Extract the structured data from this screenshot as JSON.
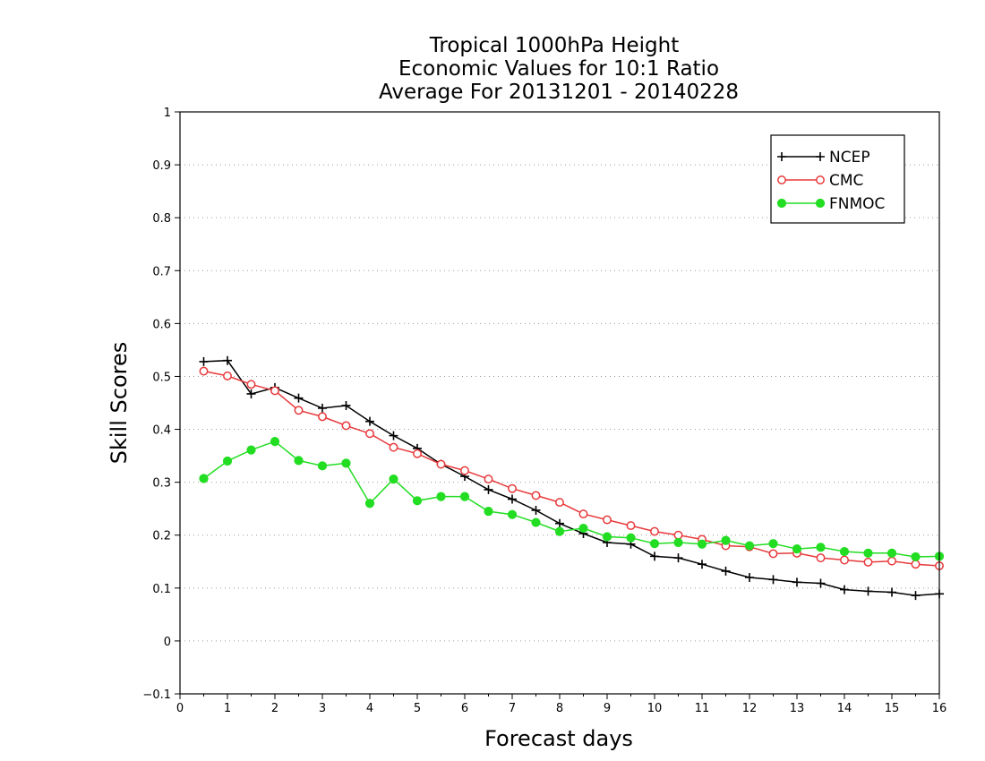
{
  "chart_data": {
    "type": "line",
    "title_lines": [
      "Tropical 1000hPa Height",
      "Economic Values for 10:1 Ratio",
      "Average For 20131201 - 20140228"
    ],
    "xlabel": "Forecast days",
    "ylabel": "Skill Scores",
    "xlim": [
      0,
      16
    ],
    "ylim": [
      -0.1,
      1
    ],
    "xticks": [
      0,
      1,
      2,
      3,
      4,
      5,
      6,
      7,
      8,
      9,
      10,
      11,
      12,
      13,
      14,
      15,
      16
    ],
    "xtick_labels": [
      "0",
      "1",
      "2",
      "3",
      "4",
      "5",
      "6",
      "7",
      "8",
      "9",
      "10",
      "11",
      "12",
      "13",
      "14",
      "15",
      "16"
    ],
    "yticks": [
      -0.1,
      0,
      0.1,
      0.2,
      0.3,
      0.4,
      0.5,
      0.6,
      0.7,
      0.8,
      0.9,
      1
    ],
    "ytick_labels": [
      "−0.1",
      "0",
      "0.1",
      "0.2",
      "0.3",
      "0.4",
      "0.5",
      "0.6",
      "0.7",
      "0.8",
      "0.9",
      "1"
    ],
    "grid": "horizontal dotted",
    "legend_position": "top-right",
    "x": [
      0.5,
      1,
      1.5,
      2,
      2.5,
      3,
      3.5,
      4,
      4.5,
      5,
      5.5,
      6,
      6.5,
      7,
      7.5,
      8,
      8.5,
      9,
      9.5,
      10,
      10.5,
      11,
      11.5,
      12,
      12.5,
      13,
      13.5,
      14,
      14.5,
      15,
      15.5,
      16
    ],
    "series": [
      {
        "name": "NCEP",
        "color": "#000000",
        "marker": "plus",
        "values": [
          0.528,
          0.53,
          0.467,
          0.479,
          0.459,
          0.44,
          0.445,
          0.415,
          0.388,
          0.364,
          0.334,
          0.311,
          0.286,
          0.268,
          0.247,
          0.222,
          0.203,
          0.186,
          0.183,
          0.16,
          0.157,
          0.145,
          0.132,
          0.12,
          0.116,
          0.111,
          0.109,
          0.097,
          0.094,
          0.092,
          0.086,
          0.089
        ]
      },
      {
        "name": "CMC",
        "color": "#e8393b",
        "marker": "open-circle",
        "values": [
          0.51,
          0.501,
          0.485,
          0.473,
          0.436,
          0.424,
          0.407,
          0.392,
          0.366,
          0.354,
          0.334,
          0.322,
          0.306,
          0.288,
          0.275,
          0.262,
          0.24,
          0.229,
          0.218,
          0.207,
          0.2,
          0.192,
          0.18,
          0.178,
          0.165,
          0.166,
          0.157,
          0.153,
          0.149,
          0.151,
          0.145,
          0.142
        ]
      },
      {
        "name": "FNMOC",
        "color": "#22dd22",
        "marker": "filled-circle",
        "values": [
          0.307,
          0.34,
          0.361,
          0.377,
          0.341,
          0.331,
          0.336,
          0.26,
          0.306,
          0.265,
          0.273,
          0.273,
          0.245,
          0.239,
          0.224,
          0.207,
          0.213,
          0.197,
          0.195,
          0.184,
          0.186,
          0.183,
          0.19,
          0.18,
          0.184,
          0.174,
          0.177,
          0.169,
          0.166,
          0.166,
          0.159,
          0.16
        ]
      }
    ]
  }
}
